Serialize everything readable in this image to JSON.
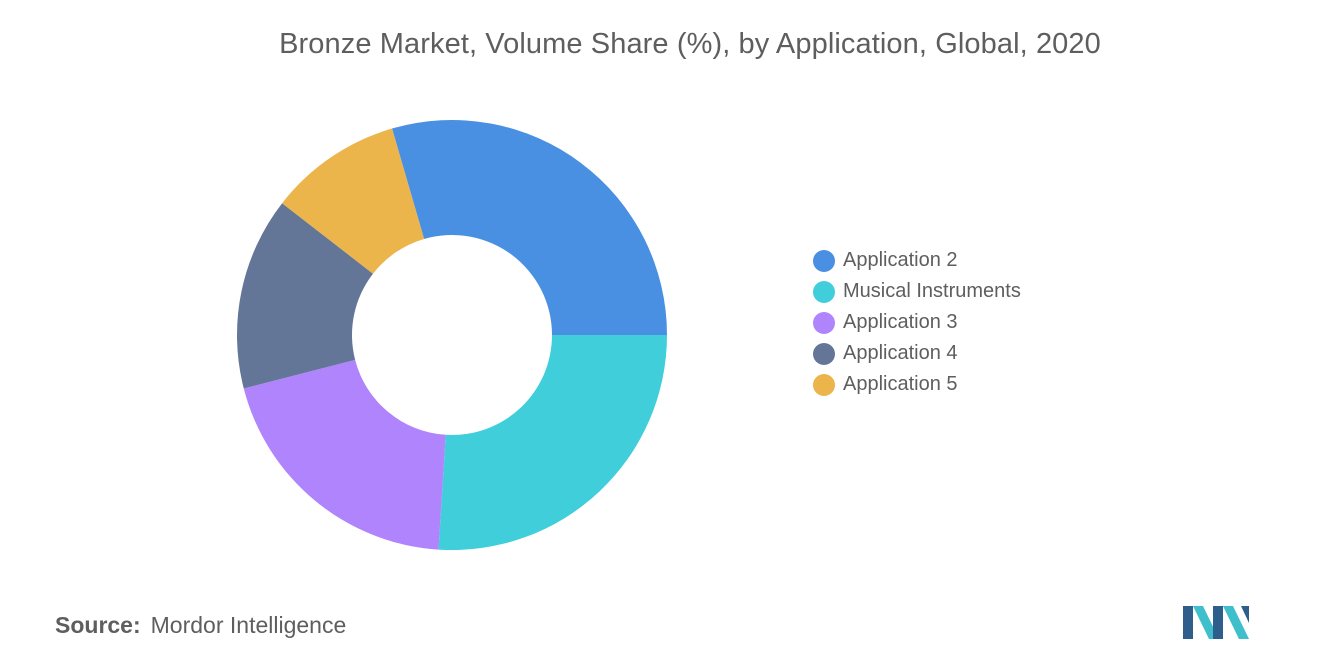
{
  "chart_data": {
    "type": "pie",
    "variant": "donut",
    "title": "Bronze Market, Volume Share (%), by Application, Global, 2020",
    "series": [
      {
        "name": "Application 2",
        "value": 29.5,
        "color": "#4A90E2"
      },
      {
        "name": "Musical Instruments",
        "value": 26.0,
        "color": "#40CFDA"
      },
      {
        "name": "Application 3",
        "value": 20.0,
        "color": "#AF84FC"
      },
      {
        "name": "Application 4",
        "value": 14.5,
        "color": "#637698"
      },
      {
        "name": "Application 5",
        "value": 10.0,
        "color": "#EBB54B"
      }
    ],
    "legend_position": "right"
  },
  "source": {
    "prefix": "Source:",
    "text": "Mordor Intelligence"
  },
  "logo": {
    "icon": "mordor-intelligence-logo-icon",
    "colors": [
      "#2E5E8C",
      "#3FBFCC"
    ]
  }
}
